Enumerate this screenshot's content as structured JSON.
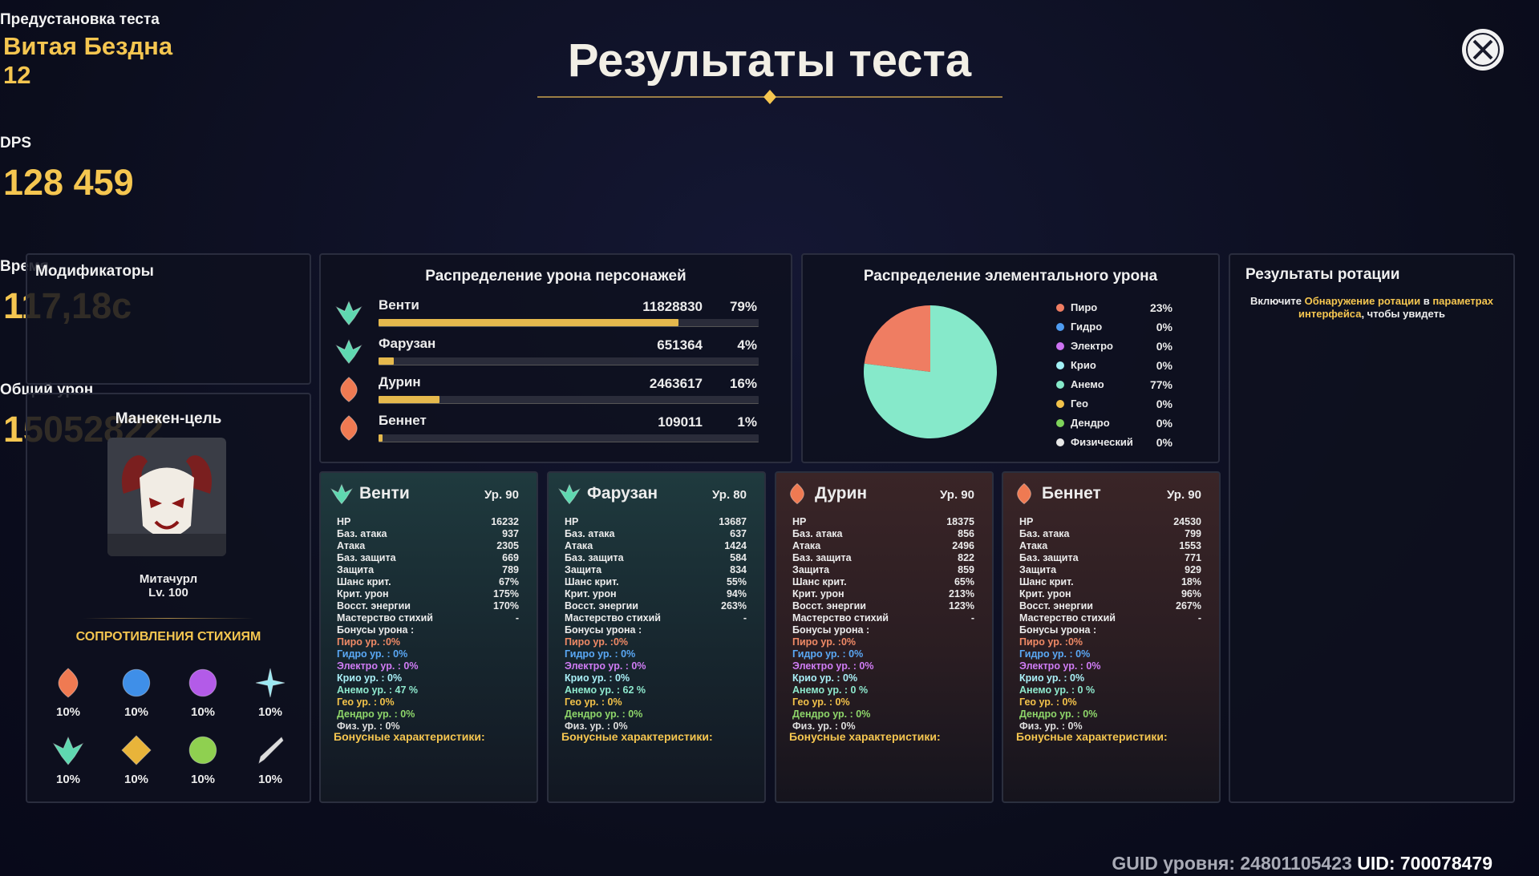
{
  "header": {
    "title": "Результаты теста"
  },
  "stats": [
    {
      "label": "Предустановка теста",
      "value": "Витая Бездна 12"
    },
    {
      "label": "DPS",
      "value": "128 459"
    },
    {
      "label": "Время",
      "value": "117,18с"
    },
    {
      "label": "Общий урон",
      "value": "15052822"
    }
  ],
  "modifiers": {
    "title": "Модификаторы"
  },
  "target": {
    "title": "Манекен-цель",
    "name": "Митачурл",
    "level": "Lv. 100",
    "res_title": "СОПРОТИВЛЕНИЯ СТИХИЯМ",
    "resistances": [
      "10%",
      "10%",
      "10%",
      "10%",
      "10%",
      "10%",
      "10%",
      "10%"
    ]
  },
  "damage": {
    "title": "Распределение урона персонажей",
    "rows": [
      {
        "name": "Венти",
        "damage": 11828830,
        "percent": 79,
        "percent_label": "79%"
      },
      {
        "name": "Фарузан",
        "damage": 651364,
        "percent": 4,
        "percent_label": "4%"
      },
      {
        "name": "Дурин",
        "damage": 2463617,
        "percent": 16,
        "percent_label": "16%"
      },
      {
        "name": "Беннет",
        "damage": 109011,
        "percent": 1,
        "percent_label": "1%"
      }
    ]
  },
  "elements": {
    "title": "Распределение элементального урона",
    "type": "pie",
    "rows": [
      {
        "name": "Пиро",
        "color": "#ef7d62",
        "value": 23,
        "label": "23%"
      },
      {
        "name": "Гидро",
        "color": "#4e9cf2",
        "value": 0,
        "label": "0%"
      },
      {
        "name": "Электро",
        "color": "#cc72f2",
        "value": 0,
        "label": "0%"
      },
      {
        "name": "Крио",
        "color": "#a2f1f6",
        "value": 0,
        "label": "0%"
      },
      {
        "name": "Анемо",
        "color": "#86e9ca",
        "value": 77,
        "label": "77%"
      },
      {
        "name": "Гео",
        "color": "#f2c24a",
        "value": 0,
        "label": "0%"
      },
      {
        "name": "Дендро",
        "color": "#7fd45b",
        "value": 0,
        "label": "0%"
      },
      {
        "name": "Физический",
        "color": "#e8e8e8",
        "value": 0,
        "label": "0%"
      }
    ]
  },
  "rotation": {
    "title": "Результаты ротации",
    "message": [
      "Включите ",
      "Обнаружение ротации",
      " в ",
      "параметрах интерфейса",
      ", чтобы увидеть"
    ]
  },
  "stat_labels": [
    "HP",
    "Баз. атака",
    "Атака",
    "Баз. защита",
    "Защита",
    "Шанс крит.",
    "Крит. урон",
    "Восст. энергии",
    "Мастерство стихий",
    "Бонусы урона :"
  ],
  "bonus_title": "Бонусные характеристики:",
  "characters": [
    {
      "name": "Венти",
      "level": "Ур. 90",
      "stat_values": [
        "16232",
        "937",
        "2305",
        "669",
        "789",
        "67%",
        "175%",
        "170%",
        "-"
      ],
      "bonuses": [
        "Пиро ур. :0%",
        "Гидро ур. : 0%",
        "Электро ур. : 0%",
        "Крио ур. : 0%",
        "Анемо ур. : 47 %",
        "Гео ур. : 0%",
        "Дендро ур. : 0%",
        "Физ. ур. : 0%"
      ]
    },
    {
      "name": "Фарузан",
      "level": "Ур. 80",
      "stat_values": [
        "13687",
        "637",
        "1424",
        "584",
        "834",
        "55%",
        "94%",
        "263%",
        "-"
      ],
      "bonuses": [
        "Пиро ур. :0%",
        "Гидро ур. : 0%",
        "Электро ур. : 0%",
        "Крио ур. : 0%",
        "Анемо ур. : 62 %",
        "Гео ур. : 0%",
        "Дендро ур. : 0%",
        "Физ. ур. : 0%"
      ]
    },
    {
      "name": "Дурин",
      "level": "Ур. 90",
      "stat_values": [
        "18375",
        "856",
        "2496",
        "822",
        "859",
        "65%",
        "213%",
        "123%",
        "-"
      ],
      "bonuses": [
        "Пиро ур. :0%",
        "Гидро ур. : 0%",
        "Электро ур. : 0%",
        "Крио ур. : 0%",
        "Анемо ур. : 0 %",
        "Гео ур. : 0%",
        "Дендро ур. : 0%",
        "Физ. ур. : 0%"
      ]
    },
    {
      "name": "Беннет",
      "level": "Ур. 90",
      "stat_values": [
        "24530",
        "799",
        "1553",
        "771",
        "929",
        "18%",
        "96%",
        "267%",
        "-"
      ],
      "bonuses": [
        "Пиро ур. :0%",
        "Гидро ур. : 0%",
        "Электро ур. : 0%",
        "Крио ур. : 0%",
        "Анемо ур. : 0 %",
        "Гео ур. : 0%",
        "Дендро ур. : 0%",
        "Физ. ур. : 0%"
      ]
    }
  ],
  "footer": {
    "guid": "GUID уровня: 24801105423",
    "uid": "UID: 700078479"
  }
}
